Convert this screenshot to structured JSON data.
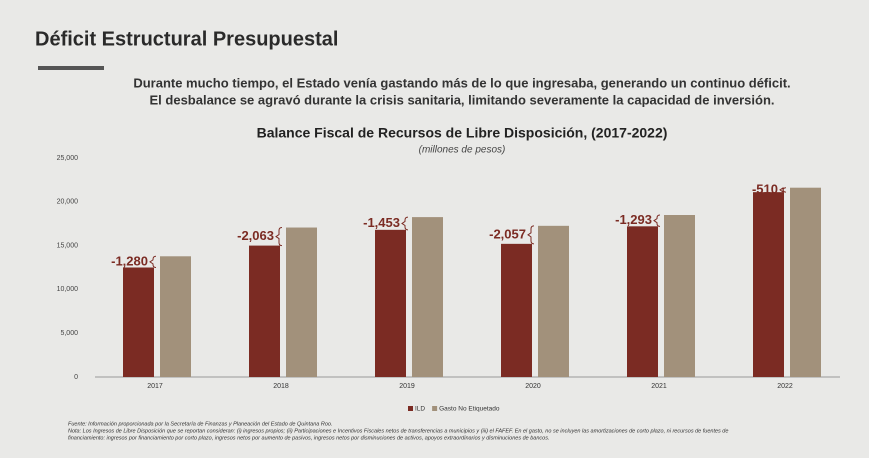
{
  "slide": {
    "title": "Déficit Estructural Presupuestal",
    "paragraph": [
      "Durante mucho tiempo, el Estado venía gastando más de lo que ingresaba, generando un continuo déficit.",
      "El desbalance se agravó durante la crisis sanitaria, limitando severamente la capacidad de inversión."
    ],
    "footnotes": [
      "Fuente: Información proporcionada por la Secretaría de Finanzas y Planeación del Estado de Quintana Roo.",
      "Nota: Los Ingresos de Libre Disposición que se reportan consideran: (i) ingresos propios; (ii) Participaciones e Incentivos Fiscales netos de transferencias a municipios y (iii) el FAFEF. En el gasto, no se incluyen las amortizaciones de corto plazo, ni recursos de fuentes de",
      "financiamiento: ingresos por financiamiento por corto plazo, ingresos netos por aumento de pasivos, ingresos netos por disminuciones de activos, apoyos extraordinarios y disminuciones de bancos."
    ]
  },
  "chart_data": {
    "type": "bar",
    "title": "Balance Fiscal de Recursos de Libre Disposición, (2017-2022)",
    "subtitle": "(millones de pesos)",
    "categories": [
      "2017",
      "2018",
      "2019",
      "2020",
      "2021",
      "2022"
    ],
    "series": [
      {
        "name": "ILD",
        "color": "#7b2b23",
        "values": [
          12500,
          15000,
          16800,
          15200,
          17200,
          21100
        ]
      },
      {
        "name": "Gasto No Etiquetado",
        "color": "#a2917b",
        "values": [
          13780,
          17063,
          18253,
          17257,
          18493,
          21610
        ]
      }
    ],
    "deficit": {
      "color": "#7b2b23",
      "values": [
        -1280,
        -2063,
        -1453,
        -2057,
        -1293,
        -510
      ],
      "value_labels": [
        "-1,280",
        "-2,063",
        "-1,453",
        "-2,057",
        "-1,293",
        "-510"
      ]
    },
    "ylim": [
      0,
      25000
    ],
    "yticks": [
      0,
      {
        "value": 5000,
        "label": "5,000"
      },
      {
        "value": 10000,
        "label": "10,000"
      },
      {
        "value": 15000,
        "label": "15,000"
      },
      {
        "value": 20000,
        "label": "20,000"
      },
      {
        "value": 25000,
        "label": "25,000"
      }
    ],
    "grid": false,
    "legend": "bottom"
  }
}
